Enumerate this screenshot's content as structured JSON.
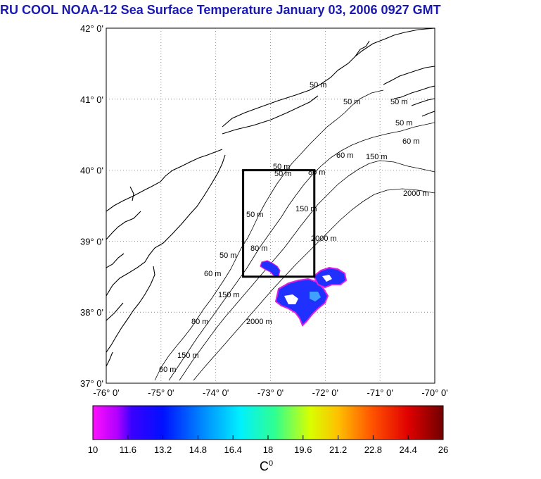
{
  "title": "RU COOL  NOAA-12 Sea Surface Temperature January 03, 2006 0927 GMT",
  "map": {
    "lat_labels": [
      "42° 0'",
      "41° 0'",
      "40° 0'",
      "39° 0'",
      "38° 0'",
      "37° 0'"
    ],
    "lon_labels": [
      "-76° 0'",
      "-75° 0'",
      "-74° 0'",
      "-73° 0'",
      "-72° 0'",
      "-71° 0'",
      "-70° 0'"
    ],
    "lat_range": [
      37,
      42
    ],
    "lon_range": [
      -76,
      -70
    ],
    "grid": "dotted",
    "contour_labels": [
      "50 m",
      "50 m",
      "50 m",
      "50 m",
      "60 m",
      "150 m",
      "2000 m",
      "80 m",
      "50 m",
      "60 m",
      "150 m",
      "2000 m",
      "50 m",
      "80 m",
      "60 m",
      "150 m",
      "2000 m",
      "50 m",
      "80 m",
      "60 m",
      "150 m",
      "50 m"
    ],
    "study_box": {
      "lon": [
        -73.5,
        -72.2
      ],
      "lat": [
        38.5,
        40.0
      ]
    }
  },
  "colorbar": {
    "ticks": [
      "10",
      "11.6",
      "13.2",
      "14.8",
      "16.4",
      "18",
      "19.6",
      "21.2",
      "22.8",
      "24.4",
      "26"
    ],
    "unit": "C",
    "unit_sup": "0",
    "colors": [
      "#ff10ff",
      "#3a00ff",
      "#0010ff",
      "#0080ff",
      "#00e8ff",
      "#30ff90",
      "#d8ff00",
      "#ffc000",
      "#ff5000",
      "#e00000",
      "#700000"
    ]
  },
  "colors": {
    "title": "#1a1ab0",
    "sst_cool": "#2030ff",
    "sst_fringe": "#e020e0"
  }
}
